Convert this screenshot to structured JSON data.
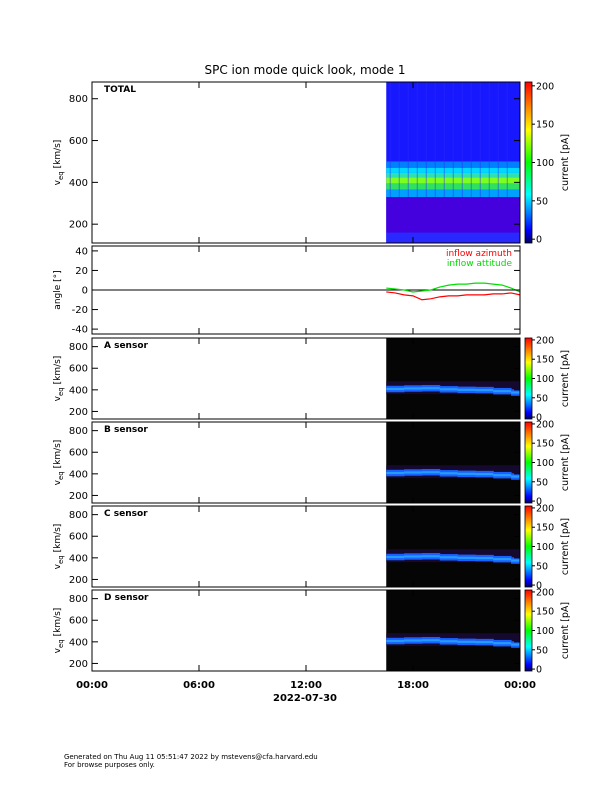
{
  "chart_data": {
    "type": "heatmap",
    "title": "SPC ion mode quick look, mode 1",
    "date_label": "2022-07-30",
    "x_tick_labels": [
      "00:00",
      "06:00",
      "12:00",
      "18:00",
      "00:00"
    ],
    "x_range_hours": [
      0,
      24
    ],
    "data_start_hour": 16.5,
    "panels": [
      {
        "id": "total",
        "label": "TOTAL",
        "kind": "spectrogram",
        "background": "#1818ff",
        "ylabel_main": "v",
        "ylabel_sub": "eq",
        "ylabel_unit": "[km/s]",
        "yticks": [
          200,
          400,
          600,
          800
        ],
        "ylim": [
          110,
          880
        ],
        "colorbar": {
          "label": "current [pA]",
          "ticks": [
            0,
            50,
            100,
            150,
            200
          ],
          "range": [
            -5,
            205
          ]
        },
        "bands": [
          {
            "from": 110,
            "to": 160,
            "color": "#2828ff"
          },
          {
            "from": 160,
            "to": 330,
            "color": "#4400dd"
          },
          {
            "from": 330,
            "to": 365,
            "color": "#00a0ff"
          },
          {
            "from": 365,
            "to": 395,
            "color": "#30e060"
          },
          {
            "from": 395,
            "to": 425,
            "color": "#7cff20"
          },
          {
            "from": 425,
            "to": 445,
            "color": "#30e0b0"
          },
          {
            "from": 445,
            "to": 470,
            "color": "#00d8ff"
          },
          {
            "from": 470,
            "to": 500,
            "color": "#0080ff"
          }
        ]
      },
      {
        "id": "angle",
        "kind": "line",
        "ylabel_main": "angle [°]",
        "yticks": [
          -40,
          -20,
          0,
          20,
          40
        ],
        "ylim": [
          -45,
          45
        ],
        "series": [
          {
            "name": "inflow azimuth",
            "color": "#ff0000",
            "x": [
              16.5,
              17.0,
              17.5,
              18.0,
              18.5,
              19.0,
              19.5,
              20.0,
              20.5,
              21.0,
              21.5,
              22.0,
              22.5,
              23.0,
              23.5,
              24.0
            ],
            "y": [
              -2,
              -3,
              -5,
              -6,
              -10,
              -9,
              -7,
              -6,
              -6,
              -5,
              -5,
              -5,
              -4,
              -4,
              -3,
              -5
            ]
          },
          {
            "name": "inflow attitude",
            "color": "#00dd00",
            "x": [
              16.5,
              17.0,
              17.5,
              18.0,
              18.5,
              19.0,
              19.5,
              20.0,
              20.5,
              21.0,
              21.5,
              22.0,
              22.5,
              23.0,
              23.5,
              24.0
            ],
            "y": [
              2,
              1,
              0,
              -2,
              -1,
              0,
              3,
              5,
              6,
              6,
              7,
              7,
              6,
              5,
              2,
              -2
            ]
          }
        ]
      },
      {
        "id": "a",
        "label": "A sensor",
        "kind": "spectrogram",
        "background": "#050505",
        "ylabel_main": "v",
        "ylabel_sub": "eq",
        "ylabel_unit": "[km/s]",
        "yticks": [
          200,
          400,
          600,
          800
        ],
        "ylim": [
          130,
          880
        ],
        "colorbar": {
          "label": "current [pA]",
          "ticks": [
            0,
            50,
            100,
            150,
            200
          ],
          "range": [
            -5,
            205
          ]
        }
      },
      {
        "id": "b",
        "label": "B sensor",
        "kind": "spectrogram",
        "background": "#050505",
        "ylabel_main": "v",
        "ylabel_sub": "eq",
        "ylabel_unit": "[km/s]",
        "yticks": [
          200,
          400,
          600,
          800
        ],
        "ylim": [
          130,
          880
        ],
        "colorbar": {
          "label": "current [pA]",
          "ticks": [
            0,
            50,
            100,
            150,
            200
          ],
          "range": [
            -5,
            205
          ]
        }
      },
      {
        "id": "c",
        "label": "C sensor",
        "kind": "spectrogram",
        "background": "#050505",
        "ylabel_main": "v",
        "ylabel_sub": "eq",
        "ylabel_unit": "[km/s]",
        "yticks": [
          200,
          400,
          600,
          800
        ],
        "ylim": [
          130,
          880
        ],
        "colorbar": {
          "label": "current [pA]",
          "ticks": [
            0,
            50,
            100,
            150,
            200
          ],
          "range": [
            -5,
            205
          ]
        }
      },
      {
        "id": "d",
        "label": "D sensor",
        "kind": "spectrogram",
        "background": "#050505",
        "ylabel_main": "v",
        "ylabel_sub": "eq",
        "ylabel_unit": "[km/s]",
        "yticks": [
          200,
          400,
          600,
          800
        ],
        "ylim": [
          130,
          880
        ],
        "colorbar": {
          "label": "current [pA]",
          "ticks": [
            0,
            50,
            100,
            150,
            200
          ],
          "range": [
            -5,
            205
          ]
        }
      }
    ],
    "sensor_band": {
      "color": "#1a60ff",
      "x": [
        16.5,
        17.5,
        18.5,
        19.5,
        20.5,
        21.5,
        22.5,
        23.5,
        24.0
      ],
      "y": [
        410,
        405,
        420,
        410,
        400,
        400,
        395,
        380,
        370
      ]
    }
  },
  "footer": {
    "line1": "Generated on Thu Aug 11 05:51:47 2022 by mstevens@cfa.harvard.edu",
    "line2": "For browse purposes only."
  }
}
